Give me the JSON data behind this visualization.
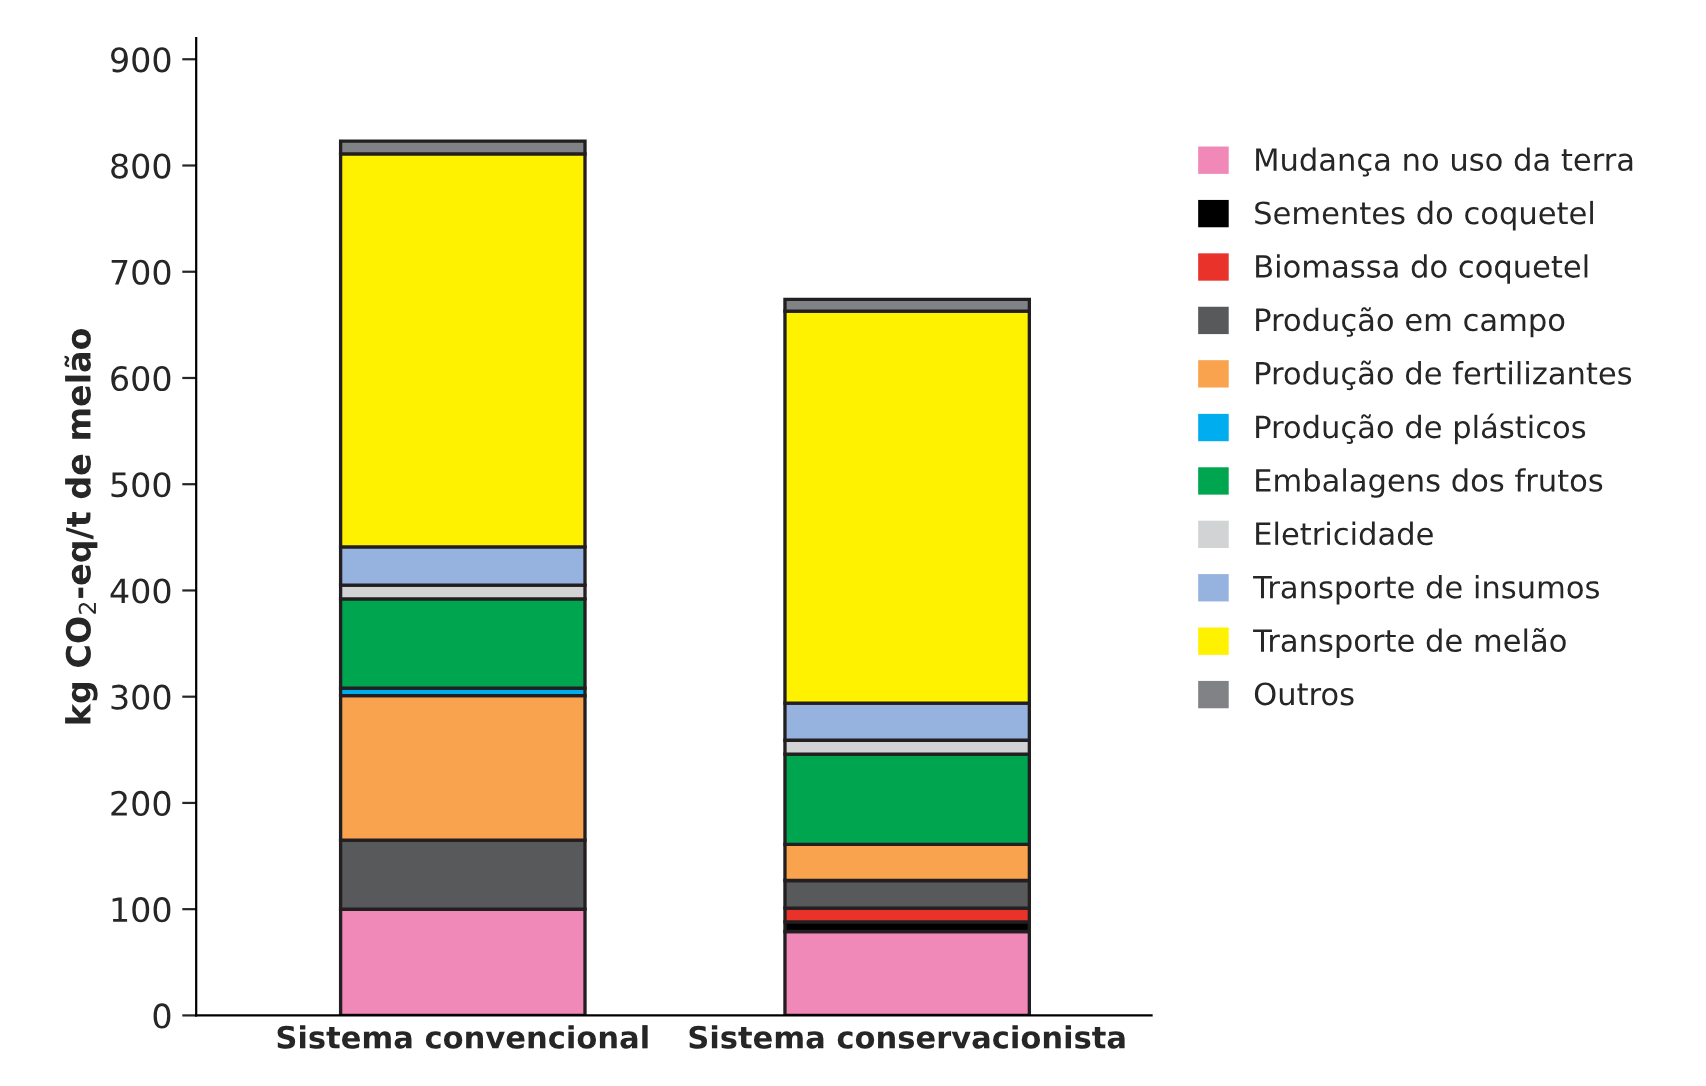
{
  "chart_data": {
    "type": "bar",
    "stacked": true,
    "ylabel": "kg CO$_{2}$-eq/t de melão",
    "categories": [
      "Sistema convencional",
      "Sistema conservacionista"
    ],
    "series": [
      {
        "name": "Mudança no uso da terra",
        "color": "#f088b8",
        "values": [
          100,
          79
        ]
      },
      {
        "name": "Sementes do coquetel",
        "color": "#000000",
        "values": [
          0,
          9
        ]
      },
      {
        "name": "Biomassa do coquetel",
        "color": "#e8322a",
        "values": [
          0,
          13
        ]
      },
      {
        "name": "Produção em campo",
        "color": "#58595b",
        "values": [
          65,
          26
        ]
      },
      {
        "name": "Produção de fertilizantes",
        "color": "#f9a34f",
        "values": [
          136,
          34
        ]
      },
      {
        "name": "Produção de plásticos",
        "color": "#00aeef",
        "values": [
          7,
          0
        ]
      },
      {
        "name": "Embalagens dos frutos",
        "color": "#00a550",
        "values": [
          84,
          85
        ]
      },
      {
        "name": "Eletricidade",
        "color": "#d1d3d4",
        "values": [
          13,
          13
        ]
      },
      {
        "name": "Transporte de insumos",
        "color": "#95b3de",
        "values": [
          36,
          35
        ]
      },
      {
        "name": "Transporte de melão",
        "color": "#fff200",
        "values": [
          370,
          369
        ]
      },
      {
        "name": "Outros",
        "color": "#808285",
        "values": [
          12,
          11
        ]
      }
    ],
    "ylim": [
      0,
      920
    ],
    "yticks": [
      0,
      100,
      200,
      300,
      400,
      500,
      600,
      700,
      800,
      900
    ],
    "grid": false,
    "legend": "right"
  }
}
